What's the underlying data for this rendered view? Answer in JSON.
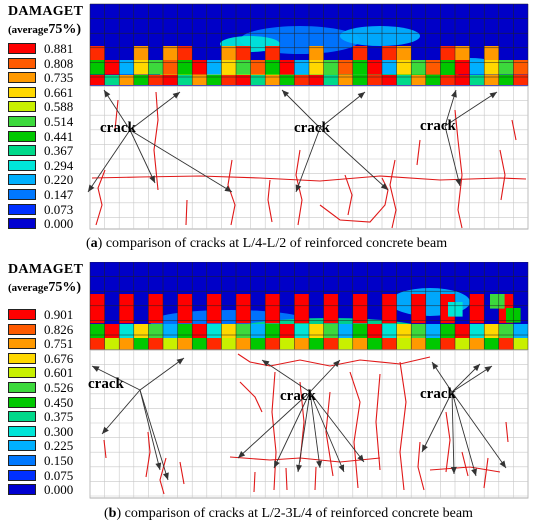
{
  "panels": [
    {
      "legend_title": "DAMAGET",
      "legend_sub_prefix": "(average",
      "legend_sub_value": "75%)",
      "legend_values": [
        "0.881",
        "0.808",
        "0.735",
        "0.661",
        "0.588",
        "0.514",
        "0.441",
        "0.367",
        "0.294",
        "0.220",
        "0.147",
        "0.073",
        "0.000"
      ],
      "crack_labels": [
        "crack",
        "crack",
        "crack"
      ],
      "caption_letter": "a",
      "caption_text": "comparison of cracks at L/4-L/2 of reinforced concrete beam"
    },
    {
      "legend_title": "DAMAGET",
      "legend_sub_prefix": "(average",
      "legend_sub_value": "75%)",
      "legend_values": [
        "0.901",
        "0.826",
        "0.751",
        "0.676",
        "0.601",
        "0.526",
        "0.450",
        "0.375",
        "0.300",
        "0.225",
        "0.150",
        "0.075",
        "0.000"
      ],
      "crack_labels": [
        "crack",
        "crack",
        "crack"
      ],
      "caption_letter": "b",
      "caption_text": "comparison of cracks at L/2-3L/4 of reinforced concrete beam"
    }
  ],
  "legend_colors": [
    "#ff0000",
    "#ff5a00",
    "#ff9900",
    "#ffd800",
    "#c8f000",
    "#3cd93c",
    "#00c800",
    "#00d98a",
    "#00e5d8",
    "#00b0ff",
    "#0078ff",
    "#0030ff",
    "#0000d0"
  ]
}
